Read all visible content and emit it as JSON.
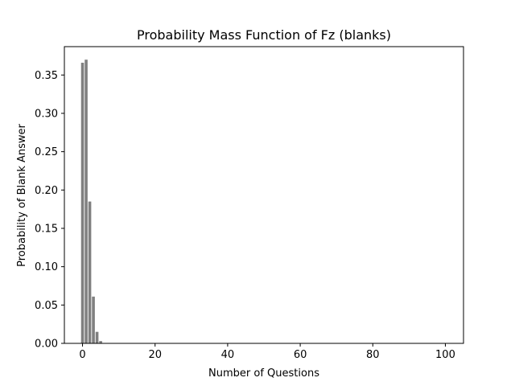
{
  "chart_data": {
    "type": "bar",
    "title": "Probability Mass Function of Fz (blanks)",
    "xlabel": "Number of Questions",
    "ylabel": "Probability of Blank Answer",
    "xlim": [
      -5,
      105
    ],
    "ylim": [
      0,
      0.387
    ],
    "x_ticks": [
      0,
      20,
      40,
      60,
      80,
      100
    ],
    "x_tick_labels": [
      "0",
      "20",
      "40",
      "60",
      "80",
      "100"
    ],
    "y_ticks": [
      0.0,
      0.05,
      0.1,
      0.15,
      0.2,
      0.25,
      0.3,
      0.35
    ],
    "y_tick_labels": [
      "0.00",
      "0.05",
      "0.10",
      "0.15",
      "0.20",
      "0.25",
      "0.30",
      "0.35"
    ],
    "bar_color": "#808080",
    "bar_width": 0.8,
    "grid": false,
    "series": [
      {
        "x": [
          0,
          1,
          2,
          3,
          4,
          5,
          6,
          7,
          8,
          9,
          10
        ],
        "values": [
          0.366,
          0.37,
          0.185,
          0.061,
          0.015,
          0.003,
          0.0005,
          0.0001,
          0.0,
          0.0,
          0.0
        ]
      }
    ]
  }
}
